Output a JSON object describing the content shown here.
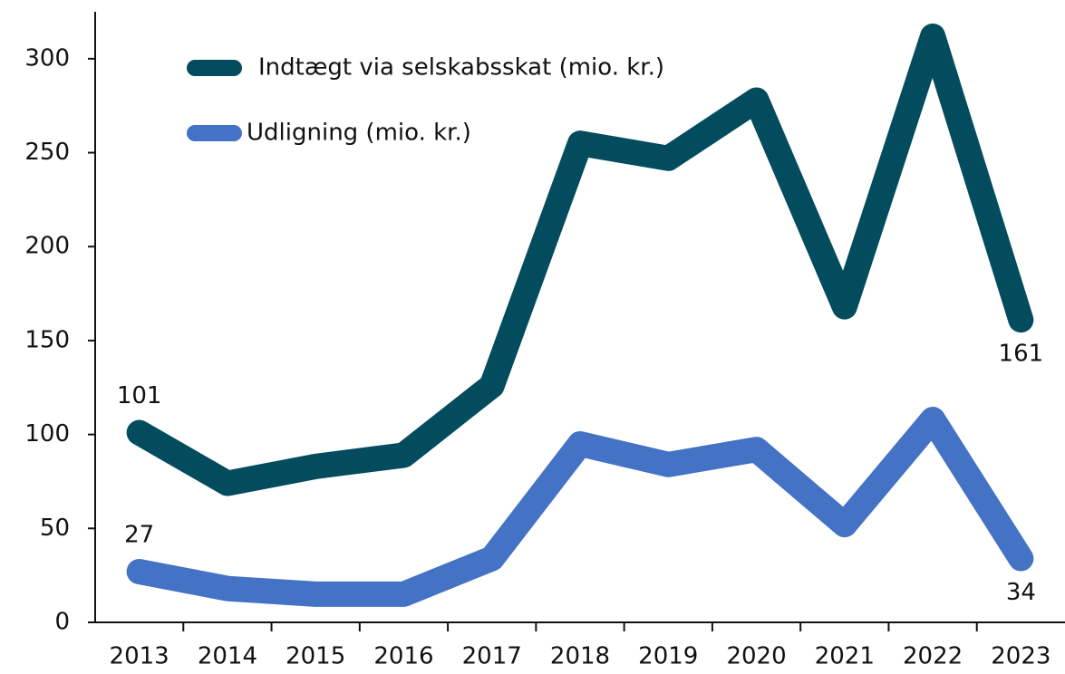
{
  "chart_data": {
    "type": "line",
    "categories": [
      "2013",
      "2014",
      "2015",
      "2016",
      "2017",
      "2018",
      "2019",
      "2020",
      "2021",
      "2022",
      "2023"
    ],
    "series": [
      {
        "name": "Indtægt via selskabsskat (mio. kr.)",
        "color": "#034c5e",
        "values": [
          101,
          74,
          83,
          89,
          126,
          255,
          247,
          278,
          168,
          312,
          161
        ]
      },
      {
        "name": "Udligning (mio. kr.)",
        "color": "#4472c4",
        "values": [
          27,
          18,
          15,
          15,
          34,
          95,
          84,
          92,
          52,
          108,
          34
        ]
      }
    ],
    "ylim": [
      0,
      325
    ],
    "yticks": [
      0,
      50,
      100,
      150,
      200,
      250,
      300
    ],
    "legend": "upper left"
  }
}
